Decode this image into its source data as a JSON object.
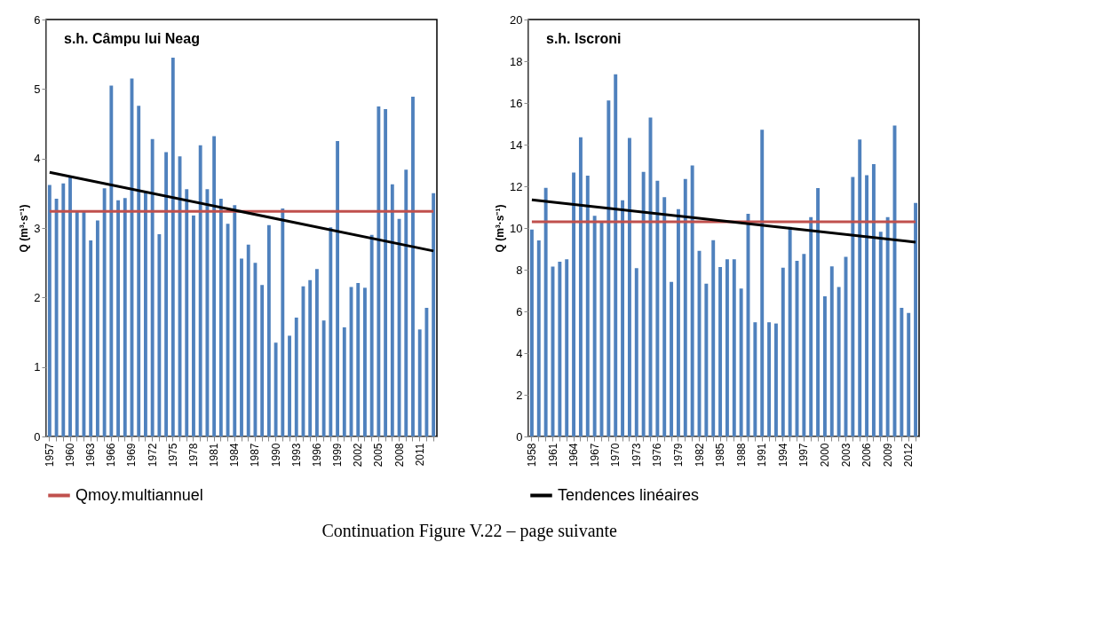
{
  "chart_data": [
    {
      "type": "bar",
      "title": "s.h. Câmpu lui Neag",
      "ylabel": "Q (m³·s⁻¹)",
      "ylim": [
        0,
        6
      ],
      "yticks": [
        0,
        1,
        2,
        3,
        4,
        5,
        6
      ],
      "legend": "bottom",
      "categories": [
        "1957",
        null,
        null,
        "1960",
        null,
        null,
        "1963",
        null,
        null,
        "1966",
        null,
        null,
        "1969",
        null,
        null,
        "1972",
        null,
        null,
        "1975",
        null,
        null,
        "1978",
        null,
        null,
        "1981",
        null,
        null,
        "1984",
        null,
        null,
        "1987",
        null,
        null,
        "1990",
        null,
        null,
        "1993",
        null,
        null,
        "1996",
        null,
        null,
        "1999",
        null,
        null,
        "2002",
        null,
        null,
        "2005",
        null,
        null,
        "2008",
        null,
        null,
        "2011",
        null,
        null
      ],
      "series": [
        {
          "color": "#4f81bd",
          "values": [
            3.62,
            3.42,
            3.64,
            3.73,
            3.24,
            3.24,
            2.82,
            3.11,
            3.57,
            5.05,
            3.4,
            3.43,
            5.15,
            4.76,
            3.52,
            4.28,
            2.91,
            4.09,
            5.45,
            4.03,
            3.56,
            3.18,
            4.19,
            3.56,
            4.32,
            3.42,
            3.06,
            3.33,
            2.56,
            2.76,
            2.5,
            2.18,
            3.04,
            1.35,
            3.28,
            1.45,
            1.71,
            2.16,
            2.25,
            2.41,
            1.67,
            3.01,
            4.25,
            1.57,
            2.15,
            2.21,
            2.14,
            2.9,
            4.75,
            4.71,
            3.63,
            3.13,
            3.84,
            4.89,
            1.54,
            1.85,
            3.5
          ]
        },
        {
          "type": "line",
          "name": "Qmoy.multiannuel",
          "color": "#c0504d",
          "values": [
            3.24,
            null,
            null,
            null,
            null,
            null,
            null,
            null,
            null,
            null,
            null,
            null,
            null,
            null,
            null,
            null,
            null,
            null,
            null,
            null,
            null,
            null,
            null,
            null,
            null,
            null,
            null,
            null,
            null,
            null,
            null,
            null,
            null,
            null,
            null,
            null,
            null,
            null,
            null,
            null,
            null,
            null,
            null,
            null,
            null,
            null,
            null,
            null,
            null,
            null,
            null,
            null,
            null,
            null,
            null,
            null,
            3.24
          ]
        },
        {
          "type": "line",
          "color": "#000000",
          "values": [
            3.8,
            null,
            null,
            null,
            null,
            null,
            null,
            null,
            null,
            null,
            null,
            null,
            null,
            null,
            null,
            null,
            null,
            null,
            null,
            null,
            null,
            null,
            null,
            null,
            null,
            null,
            null,
            null,
            null,
            null,
            null,
            null,
            null,
            null,
            null,
            null,
            null,
            null,
            null,
            null,
            null,
            null,
            null,
            null,
            null,
            null,
            null,
            null,
            null,
            null,
            null,
            null,
            null,
            null,
            null,
            null,
            2.67
          ]
        }
      ]
    },
    {
      "type": "bar",
      "title": "s.h. Iscroni",
      "ylabel": "Q (m³·s⁻¹)",
      "ylim": [
        0,
        20
      ],
      "yticks": [
        0,
        2,
        4,
        6,
        8,
        10,
        12,
        14,
        16,
        18,
        20
      ],
      "legend": "bottom",
      "annotations": [
        "Continuation Figure V.22 – page suivante"
      ],
      "categories": [
        "1958",
        null,
        null,
        "1961",
        null,
        null,
        "1964",
        null,
        null,
        "1967",
        null,
        null,
        "1970",
        null,
        null,
        "1973",
        null,
        null,
        "1976",
        null,
        null,
        "1979",
        null,
        null,
        "1982",
        null,
        null,
        "1985",
        null,
        null,
        "1988",
        null,
        null,
        "1991",
        null,
        null,
        "1994",
        null,
        null,
        "1997",
        null,
        null,
        "2000",
        null,
        null,
        "2003",
        null,
        null,
        "2006",
        null,
        null,
        "2009",
        null,
        null,
        "2012",
        null
      ],
      "series": [
        {
          "color": "#4f81bd",
          "values": [
            9.93,
            9.4,
            11.93,
            8.15,
            8.38,
            8.5,
            12.66,
            14.35,
            12.51,
            10.58,
            10.3,
            16.12,
            17.37,
            11.33,
            14.32,
            8.07,
            12.69,
            15.3,
            12.27,
            11.48,
            7.42,
            10.9,
            12.35,
            13.0,
            8.9,
            7.33,
            9.42,
            8.13,
            8.5,
            8.5,
            7.1,
            10.68,
            5.48,
            14.71,
            5.48,
            5.42,
            8.1,
            10.05,
            8.43,
            8.76,
            10.52,
            11.92,
            6.72,
            8.16,
            7.17,
            8.62,
            12.45,
            14.25,
            12.53,
            13.06,
            9.82,
            10.52,
            14.92,
            6.17,
            5.93,
            11.2
          ]
        },
        {
          "type": "line",
          "color": "#c0504d",
          "values": [
            10.3,
            null,
            null,
            null,
            null,
            null,
            null,
            null,
            null,
            null,
            null,
            null,
            null,
            null,
            null,
            null,
            null,
            null,
            null,
            null,
            null,
            null,
            null,
            null,
            null,
            null,
            null,
            null,
            null,
            null,
            null,
            null,
            null,
            null,
            null,
            null,
            null,
            null,
            null,
            null,
            null,
            null,
            null,
            null,
            null,
            null,
            null,
            null,
            null,
            null,
            null,
            null,
            null,
            null,
            null,
            10.3
          ]
        },
        {
          "type": "line",
          "name": "Tendences linéaires",
          "color": "#000000",
          "values": [
            11.35,
            null,
            null,
            null,
            null,
            null,
            null,
            null,
            null,
            null,
            null,
            null,
            null,
            null,
            null,
            null,
            null,
            null,
            null,
            null,
            null,
            null,
            null,
            null,
            null,
            null,
            null,
            null,
            null,
            null,
            null,
            null,
            null,
            null,
            null,
            null,
            null,
            null,
            null,
            null,
            null,
            null,
            null,
            null,
            null,
            null,
            null,
            null,
            null,
            null,
            null,
            null,
            null,
            null,
            null,
            9.32
          ]
        }
      ]
    }
  ]
}
